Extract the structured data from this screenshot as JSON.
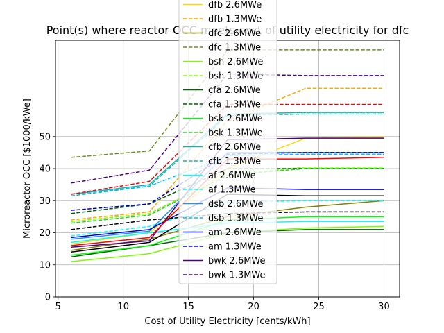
{
  "chart_data": {
    "type": "line",
    "title": "Point(s) where reactor OCC meets cost of utility electricity for dfc",
    "xlabel": "Cost of Utility Electricity [cents/kWh]",
    "ylabel": "Microreactor OCC [$1000/kWe]",
    "xlim": [
      4.8,
      31.2
    ],
    "ylim": [
      0,
      80
    ],
    "xticks": [
      5,
      10,
      15,
      20,
      25,
      30
    ],
    "yticks": [
      0,
      10,
      20,
      30,
      40,
      50
    ],
    "grid": true,
    "legend_position": "top-center, overlapping plot",
    "x": [
      6,
      12,
      18,
      24,
      30
    ],
    "series": [
      {
        "name": "dfb 2.6MWe",
        "color": "#ffd700",
        "dash": "solid",
        "values": [
          16.5,
          20.0,
          40.0,
          49.5,
          49.8
        ]
      },
      {
        "name": "dfb 1.3MWe",
        "color": "#ffa500",
        "dash": "dashed",
        "values": [
          24.0,
          26.5,
          55.0,
          65.0,
          65.0
        ]
      },
      {
        "name": "dfc 2.6MWe",
        "color": "#808000",
        "dash": "solid",
        "values": [
          14.5,
          18.0,
          25.0,
          28.0,
          30.0
        ]
      },
      {
        "name": "dfc 1.3MWe",
        "color": "#6b8e23",
        "dash": "dashed",
        "values": [
          43.5,
          45.5,
          77.0,
          77.0,
          77.0
        ]
      },
      {
        "name": "bsh 2.6MWe",
        "color": "#7cfc00",
        "dash": "solid",
        "values": [
          11.0,
          13.5,
          20.0,
          21.5,
          22.0
        ]
      },
      {
        "name": "bsh 1.3MWe",
        "color": "#7fff00",
        "dash": "dashed",
        "values": [
          23.5,
          26.0,
          38.0,
          40.5,
          40.5
        ]
      },
      {
        "name": "cfa 2.6MWe",
        "color": "#006400",
        "dash": "solid",
        "values": [
          12.5,
          16.0,
          20.0,
          21.0,
          21.0
        ]
      },
      {
        "name": "cfa 1.3MWe",
        "color": "#006400",
        "dash": "dashed",
        "values": [
          26.0,
          29.0,
          40.0,
          40.0,
          40.0
        ]
      },
      {
        "name": "bsk 2.6MWe",
        "color": "#00ff00",
        "dash": "solid",
        "values": [
          13.0,
          16.0,
          24.0,
          25.0,
          25.0
        ]
      },
      {
        "name": "bsk 1.3MWe",
        "color": "#32cd32",
        "dash": "dashed",
        "values": [
          23.0,
          25.5,
          38.0,
          40.0,
          40.0
        ]
      },
      {
        "name": "cfb 2.6MWe",
        "color": "#20b2aa",
        "dash": "solid",
        "values": [
          32.0,
          35.0,
          57.0,
          57.5,
          57.5
        ]
      },
      {
        "name": "cfb 1.3MWe",
        "color": "#20b2aa",
        "dash": "dashed",
        "values": [
          31.5,
          34.5,
          56.5,
          57.0,
          57.0
        ]
      },
      {
        "name": "af 2.6MWe",
        "color": "#00ffff",
        "dash": "solid",
        "values": [
          17.0,
          20.0,
          23.0,
          23.5,
          23.5
        ]
      },
      {
        "name": "af 1.3MWe",
        "color": "#00ffff",
        "dash": "dashed",
        "values": [
          19.0,
          22.0,
          29.5,
          30.0,
          30.0
        ]
      },
      {
        "name": "dsb 2.6MWe",
        "color": "#1e90ff",
        "dash": "solid",
        "values": [
          18.0,
          20.5,
          45.0,
          45.0,
          45.0
        ]
      },
      {
        "name": "dsb 1.3MWe",
        "color": "#00bfff",
        "dash": "dashed",
        "values": [
          32.0,
          34.5,
          44.0,
          44.5,
          44.5
        ]
      },
      {
        "name": "am 2.6MWe",
        "color": "#0000cd",
        "dash": "solid",
        "values": [
          18.5,
          21.0,
          34.0,
          33.5,
          33.5
        ]
      },
      {
        "name": "am 1.3MWe",
        "color": "#0000cd",
        "dash": "dashed",
        "values": [
          27.0,
          29.0,
          44.5,
          45.0,
          45.0
        ]
      },
      {
        "name": "bwk 2.6MWe",
        "color": "#4b0082",
        "dash": "solid",
        "values": [
          15.5,
          17.5,
          49.0,
          49.5,
          49.5
        ]
      },
      {
        "name": "bwk 1.3MWe",
        "color": "#4b0082",
        "dash": "dashed",
        "values": [
          35.5,
          39.5,
          69.5,
          69.0,
          69.0
        ]
      },
      {
        "name": "",
        "color": "#ff0000",
        "dash": "solid",
        "values": [
          16.0,
          18.5,
          43.0,
          43.0,
          43.5
        ]
      },
      {
        "name": "",
        "color": "#ff0000",
        "dash": "dashed",
        "values": [
          32.0,
          36.0,
          60.0,
          60.0,
          60.0
        ]
      },
      {
        "name": "",
        "color": "#000000",
        "dash": "solid",
        "values": [
          14.0,
          17.0,
          32.0,
          31.5,
          31.5
        ]
      },
      {
        "name": "",
        "color": "#000000",
        "dash": "dashed",
        "values": [
          21.0,
          24.0,
          26.0,
          26.5,
          26.5
        ]
      }
    ]
  }
}
